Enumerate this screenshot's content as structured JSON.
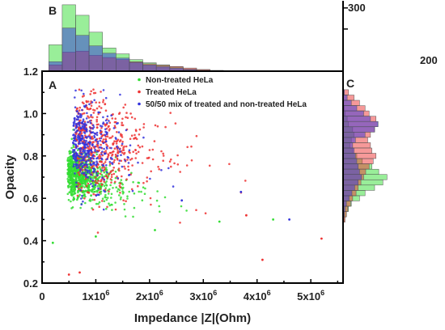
{
  "panels": {
    "main": "A",
    "top_hist": "B",
    "right_hist": "C"
  },
  "colors": {
    "non_treated": "#33dd33",
    "treated": "#ee3333",
    "mix": "#3333dd",
    "axis": "#000000"
  },
  "chart_data": [
    {
      "type": "scatter",
      "panel": "A",
      "xlabel": "Impedance |Z|(Ohm)",
      "ylabel": "Opacity",
      "xlim": [
        0,
        5600000
      ],
      "ylim": [
        0.2,
        1.2
      ],
      "x_ticks": [
        0,
        1000000,
        2000000,
        3000000,
        4000000,
        5000000
      ],
      "x_tick_labels": [
        "0",
        "1x10",
        "2x10",
        "3x10",
        "4x10",
        "5x10"
      ],
      "x_tick_exponent": "6",
      "y_ticks": [
        0.2,
        0.4,
        0.6,
        0.8,
        1.0,
        1.2
      ],
      "y_tick_labels": [
        "0.2",
        "0.4",
        "0.6",
        "0.8",
        "1.0",
        "1.2"
      ],
      "legend_position": "top-center",
      "series": [
        {
          "name": "Non-treated HeLa",
          "color_key": "non_treated",
          "count": 800,
          "centroid": [
            650000,
            0.71
          ],
          "spread": [
            500000,
            0.055
          ],
          "outliers": [
            [
              200000,
              0.39
            ],
            [
              1000000,
              0.42
            ],
            [
              2100000,
              0.45
            ],
            [
              3300000,
              0.49
            ],
            [
              4300000,
              0.5
            ]
          ]
        },
        {
          "name": "Treated HeLa",
          "color_key": "treated",
          "count": 550,
          "centroid": [
            900000,
            0.86
          ],
          "spread": [
            800000,
            0.11
          ],
          "outliers": [
            [
              500000,
              0.24
            ],
            [
              700000,
              0.25
            ],
            [
              4100000,
              0.31
            ],
            [
              5200000,
              0.41
            ],
            [
              3800000,
              0.52
            ]
          ]
        },
        {
          "name": "50/50 mix of treated and non-treated HeLa",
          "color_key": "mix",
          "count": 400,
          "centroid": [
            750000,
            0.85
          ],
          "spread": [
            500000,
            0.1
          ],
          "outliers": [
            [
              4600000,
              0.5
            ],
            [
              3700000,
              0.63
            ],
            [
              2600000,
              0.59
            ]
          ]
        }
      ]
    },
    {
      "type": "bar",
      "panel": "B",
      "orientation": "vertical",
      "bins_x": [
        250000,
        500000,
        750000,
        1000000,
        1250000,
        1500000,
        1750000,
        2000000,
        2250000,
        2500000,
        2750000,
        3000000,
        3250000
      ],
      "bin_width": 250000,
      "count_ticks": [
        200,
        300
      ],
      "count_tick_labels": [
        "200",
        "300"
      ],
      "count_range": [
        0,
        330
      ],
      "series": [
        {
          "name": "Non-treated HeLa",
          "color_key": "non_treated",
          "values": [
            125,
            315,
            265,
            185,
            110,
            82,
            55,
            40,
            30,
            20,
            10,
            5,
            3
          ]
        },
        {
          "name": "Treated HeLa",
          "color_key": "treated",
          "values": [
            30,
            90,
            95,
            75,
            65,
            55,
            45,
            35,
            28,
            22,
            15,
            8,
            4
          ]
        },
        {
          "name": "50/50 mix of treated and non-treated HeLa",
          "color_key": "mix",
          "values": [
            45,
            205,
            170,
            120,
            85,
            62,
            42,
            30,
            22,
            15,
            8,
            4,
            2
          ]
        }
      ]
    },
    {
      "type": "bar",
      "panel": "C",
      "orientation": "horizontal",
      "bins_y": [
        0.5,
        0.525,
        0.55,
        0.575,
        0.6,
        0.625,
        0.65,
        0.675,
        0.7,
        0.725,
        0.75,
        0.775,
        0.8,
        0.825,
        0.85,
        0.875,
        0.9,
        0.925,
        0.95,
        0.975,
        1.0,
        1.025,
        1.05,
        1.075,
        1.1
      ],
      "bin_width": 0.025,
      "count_range": [
        0,
        330
      ],
      "series": [
        {
          "name": "Non-treated HeLa",
          "color_key": "non_treated",
          "values": [
            10,
            25,
            40,
            60,
            120,
            160,
            230,
            290,
            320,
            260,
            210,
            140,
            100,
            70,
            50,
            60,
            80,
            70,
            40,
            30,
            15,
            8,
            5,
            3,
            2
          ]
        },
        {
          "name": "Treated HeLa",
          "color_key": "treated",
          "values": [
            15,
            25,
            35,
            55,
            70,
            95,
            110,
            130,
            150,
            165,
            190,
            220,
            240,
            210,
            200,
            180,
            200,
            230,
            250,
            240,
            190,
            160,
            120,
            80,
            40
          ]
        },
        {
          "name": "50/50 mix of treated and non-treated HeLa",
          "color_key": "mix",
          "values": [
            5,
            10,
            15,
            25,
            45,
            65,
            85,
            110,
            135,
            120,
            110,
            100,
            90,
            80,
            70,
            90,
            160,
            230,
            255,
            200,
            150,
            100,
            60,
            30,
            10
          ]
        }
      ]
    }
  ]
}
